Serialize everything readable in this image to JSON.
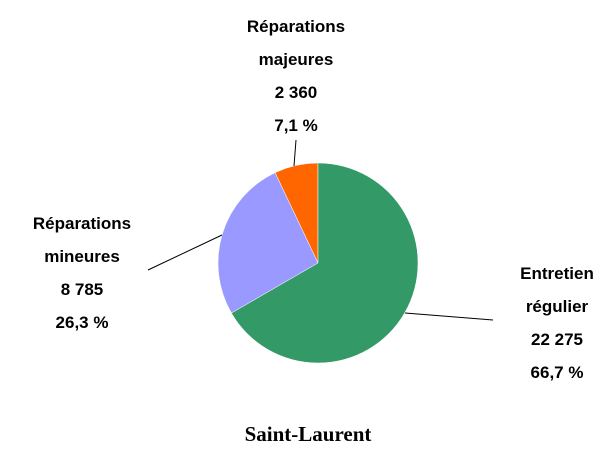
{
  "chart_data": {
    "type": "pie",
    "title": "Saint-Laurent",
    "categories": [
      "Entretien régulier",
      "Réparations mineures",
      "Réparations majeures"
    ],
    "values": [
      22275,
      8785,
      2360
    ],
    "value_labels": [
      "22 275",
      "8 785",
      "2 360"
    ],
    "percentages": [
      66.7,
      26.3,
      7.1
    ],
    "percentage_labels": [
      "66,7 %",
      "26,3 %",
      "7,1 %"
    ],
    "colors": [
      "#339966",
      "#9999ff",
      "#ff6600"
    ]
  }
}
